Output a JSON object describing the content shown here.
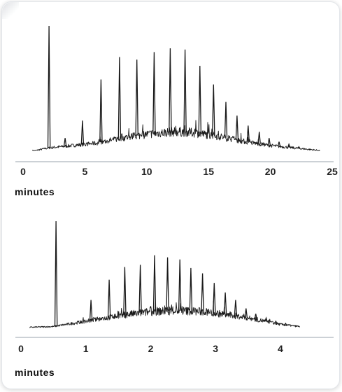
{
  "colors": {
    "trace": "#1a1a1a",
    "axis": "#9aa3ad",
    "text": "#222222"
  },
  "chart_data": [
    {
      "type": "line",
      "xlabel": "minutes",
      "xlim": [
        0,
        25
      ],
      "x_ticks": [
        "0",
        "5",
        "10",
        "15",
        "20",
        "25"
      ],
      "ylim": [
        0,
        100
      ],
      "baseline": {
        "x": [
          0,
          1,
          2,
          4,
          6,
          8,
          10,
          12,
          13,
          14,
          16,
          18,
          20,
          22,
          24
        ],
        "y": [
          0,
          0,
          2,
          4,
          6,
          10,
          13,
          15,
          15,
          14,
          11,
          7,
          4,
          2,
          0
        ]
      },
      "peaks": {
        "x": [
          2.1,
          3.4,
          4.8,
          6.3,
          7.8,
          9.2,
          10.6,
          11.9,
          13.1,
          14.3,
          15.4,
          16.4,
          17.3,
          18.2,
          19.1,
          19.9,
          20.7,
          21.5,
          22.3
        ],
        "y": [
          100,
          10,
          24,
          57,
          75,
          73,
          79,
          82,
          81,
          68,
          53,
          39,
          28,
          20,
          15,
          10,
          7,
          5,
          3
        ]
      }
    },
    {
      "type": "line",
      "xlabel": "minutes",
      "xlim": [
        0,
        4.4
      ],
      "x_ticks": [
        "0",
        "1",
        "2",
        "3",
        "4"
      ],
      "ylim": [
        0,
        100
      ],
      "baseline": {
        "x": [
          0,
          0.5,
          0.8,
          1.2,
          1.6,
          2.0,
          2.4,
          2.8,
          3.2,
          3.6,
          4.0,
          4.3
        ],
        "y": [
          0,
          1,
          4,
          8,
          12,
          15,
          16,
          15,
          12,
          8,
          3,
          1
        ]
      },
      "peaks": {
        "x": [
          0.54,
          1.08,
          1.36,
          1.6,
          1.84,
          2.06,
          2.26,
          2.45,
          2.62,
          2.8,
          2.98,
          3.15,
          3.31,
          3.47,
          3.62,
          3.78,
          3.93,
          4.08
        ],
        "y": [
          100,
          26,
          45,
          57,
          59,
          68,
          66,
          64,
          56,
          51,
          42,
          33,
          26,
          18,
          13,
          9,
          6,
          4
        ]
      }
    }
  ]
}
